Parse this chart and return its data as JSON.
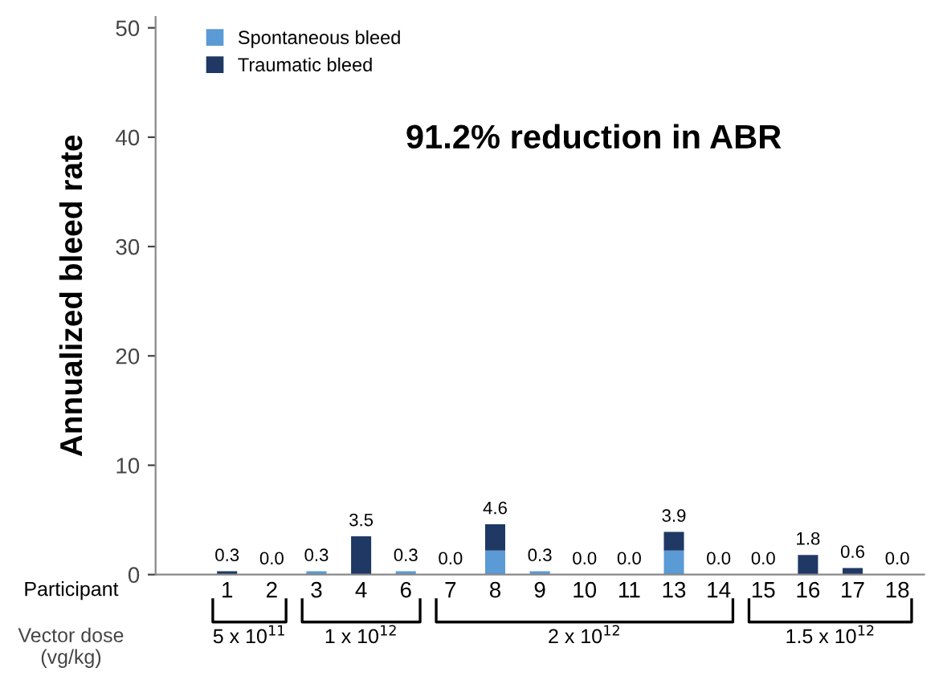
{
  "chart_data": {
    "type": "bar",
    "stacked": true,
    "ylabel": "Annualized bleed rate",
    "xlabel": "Participant",
    "categories": [
      "1",
      "2",
      "3",
      "4",
      "6",
      "7",
      "8",
      "9",
      "10",
      "11",
      "13",
      "14",
      "15",
      "16",
      "17",
      "18"
    ],
    "series": [
      {
        "name": "Spontaneous bleed",
        "color": "#5b9bd5",
        "values": [
          0,
          0,
          0.3,
          0,
          0.3,
          0,
          2.2,
          0.3,
          0,
          0,
          2.2,
          0,
          0,
          0,
          0,
          0
        ]
      },
      {
        "name": "Traumatic bleed",
        "color": "#1f3864",
        "values": [
          0.3,
          0,
          0,
          3.5,
          0,
          0,
          2.4,
          0,
          0,
          0,
          1.7,
          0,
          0,
          1.8,
          0.6,
          0
        ]
      }
    ],
    "totals": [
      "0.3",
      "0.0",
      "0.3",
      "3.5",
      "0.3",
      "0.0",
      "4.6",
      "0.3",
      "0.0",
      "0.0",
      "3.9",
      "0.0",
      "0.0",
      "1.8",
      "0.6",
      "0.0"
    ],
    "annotations": [
      "91.2% reduction in ABR",
      "Vector dose\n(vg/kg)",
      "5 x 10$^{11}$",
      "1 x 10$^{12}$",
      "2 x 10$^{12}$",
      "1.5 x 10$^{12}$"
    ],
    "ylim": [
      0,
      51
    ],
    "yticks": [
      0,
      10,
      20,
      30,
      40,
      50
    ],
    "legend": "top left",
    "grid": false
  }
}
